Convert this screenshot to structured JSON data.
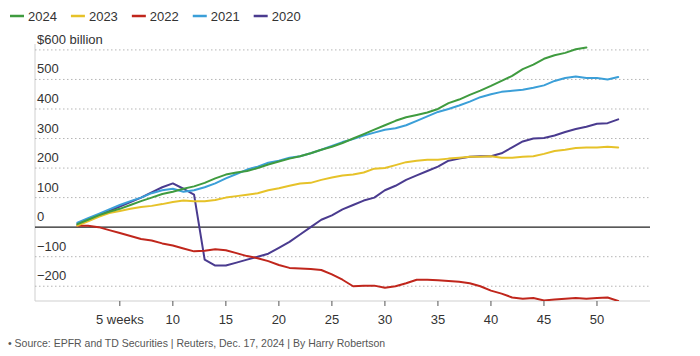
{
  "chart_data": {
    "type": "line",
    "source": "• Source: EPFR and TD Securities | Reuters, Dec. 17, 2024 | By Harry Robertson",
    "x": [
      1,
      2,
      3,
      4,
      5,
      6,
      7,
      8,
      9,
      10,
      11,
      12,
      13,
      14,
      15,
      16,
      17,
      18,
      19,
      20,
      21,
      22,
      23,
      24,
      25,
      26,
      27,
      28,
      29,
      30,
      31,
      32,
      33,
      34,
      35,
      36,
      37,
      38,
      39,
      40,
      41,
      42,
      43,
      44,
      45,
      46,
      47,
      48,
      49,
      50,
      51,
      52
    ],
    "xlim": [
      -3,
      55
    ],
    "xticks": [
      {
        "value": 5,
        "label": "5 weeks"
      },
      10,
      15,
      20,
      25,
      30,
      35,
      40,
      45,
      50
    ],
    "ylim": [
      -250,
      620
    ],
    "yticks": [
      {
        "value": -200,
        "label": "−200"
      },
      {
        "value": -100,
        "label": "−100"
      },
      0,
      100,
      200,
      300,
      400,
      500,
      {
        "value": 600,
        "label": "$600 billion"
      }
    ],
    "grid": true,
    "legend": "top-left",
    "series": [
      {
        "name": "2024",
        "color": "#3f9b3f",
        "values": [
          10,
          25,
          40,
          52,
          62,
          75,
          88,
          100,
          112,
          120,
          130,
          138,
          150,
          165,
          178,
          185,
          190,
          200,
          212,
          222,
          232,
          240,
          250,
          262,
          272,
          285,
          300,
          315,
          330,
          345,
          360,
          372,
          380,
          388,
          400,
          420,
          432,
          448,
          462,
          478,
          495,
          512,
          535,
          550,
          570,
          582,
          590,
          602,
          608,
          null,
          null,
          null
        ]
      },
      {
        "name": "2023",
        "color": "#e6c229",
        "values": [
          5,
          20,
          35,
          48,
          55,
          62,
          68,
          72,
          78,
          85,
          90,
          88,
          88,
          92,
          100,
          105,
          110,
          115,
          125,
          132,
          140,
          148,
          150,
          160,
          168,
          175,
          178,
          185,
          198,
          200,
          210,
          220,
          225,
          228,
          228,
          232,
          235,
          238,
          238,
          240,
          235,
          235,
          238,
          240,
          248,
          258,
          262,
          268,
          270,
          270,
          272,
          270
        ]
      },
      {
        "name": "2022",
        "color": "#c0261c",
        "values": [
          5,
          5,
          0,
          -10,
          -20,
          -30,
          -40,
          -45,
          -55,
          -62,
          -72,
          -82,
          -80,
          -75,
          -78,
          -88,
          -98,
          -105,
          -115,
          -128,
          -138,
          -140,
          -142,
          -145,
          -160,
          -178,
          -200,
          -198,
          -198,
          -205,
          -200,
          -190,
          -178,
          -178,
          -180,
          -182,
          -185,
          -190,
          -200,
          -215,
          -225,
          -238,
          -242,
          -240,
          -248,
          -245,
          -242,
          -240,
          -242,
          -240,
          -238,
          -250
        ]
      },
      {
        "name": "2021",
        "color": "#3b9fd8",
        "values": [
          15,
          30,
          45,
          60,
          75,
          88,
          100,
          115,
          125,
          130,
          120,
          125,
          135,
          148,
          165,
          180,
          195,
          205,
          218,
          225,
          235,
          240,
          250,
          262,
          275,
          288,
          298,
          310,
          320,
          330,
          335,
          345,
          360,
          375,
          390,
          400,
          412,
          425,
          440,
          450,
          458,
          462,
          465,
          472,
          480,
          495,
          505,
          510,
          505,
          505,
          500,
          508
        ]
      },
      {
        "name": "2020",
        "color": "#4a3b8f",
        "values": [
          10,
          25,
          40,
          55,
          70,
          85,
          100,
          118,
          135,
          148,
          130,
          110,
          -110,
          -130,
          -130,
          -120,
          -110,
          -100,
          -90,
          -70,
          -50,
          -25,
          0,
          25,
          40,
          60,
          75,
          90,
          100,
          125,
          140,
          160,
          175,
          190,
          205,
          225,
          232,
          238,
          240,
          240,
          250,
          270,
          290,
          300,
          302,
          310,
          322,
          332,
          340,
          350,
          352,
          365
        ]
      }
    ]
  }
}
